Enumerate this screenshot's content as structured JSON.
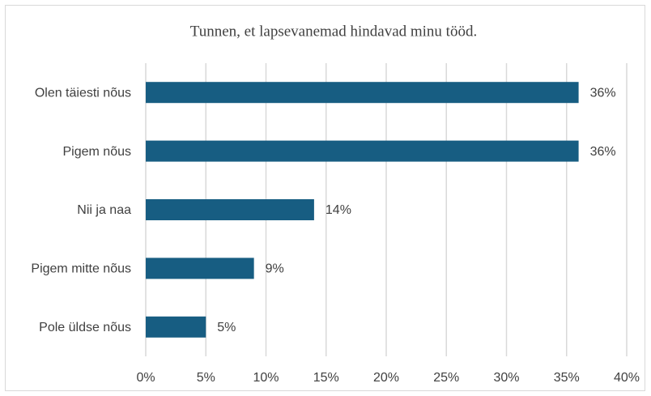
{
  "chart_data": {
    "type": "bar",
    "orientation": "horizontal",
    "title": "Tunnen, et lapsevanemad  hindavad minu tööd.",
    "categories": [
      "Olen täiesti nõus",
      "Pigem nõus",
      "Nii ja naa",
      "Pigem mitte nõus",
      "Pole üldse nõus"
    ],
    "values": [
      36,
      36,
      14,
      9,
      5
    ],
    "value_labels": [
      "36%",
      "36%",
      "14%",
      "9%",
      "5%"
    ],
    "color": "#175d82",
    "xlim": [
      0,
      40
    ],
    "xticks": [
      {
        "value": 0,
        "label": "0%"
      },
      {
        "value": 5,
        "label": "5%"
      },
      {
        "value": 10,
        "label": "10%"
      },
      {
        "value": 15,
        "label": "15%"
      },
      {
        "value": 20,
        "label": "20%"
      },
      {
        "value": 25,
        "label": "25%"
      },
      {
        "value": 30,
        "label": "30%"
      },
      {
        "value": 35,
        "label": "35%"
      },
      {
        "value": 40,
        "label": "40%"
      }
    ],
    "grid": true
  }
}
